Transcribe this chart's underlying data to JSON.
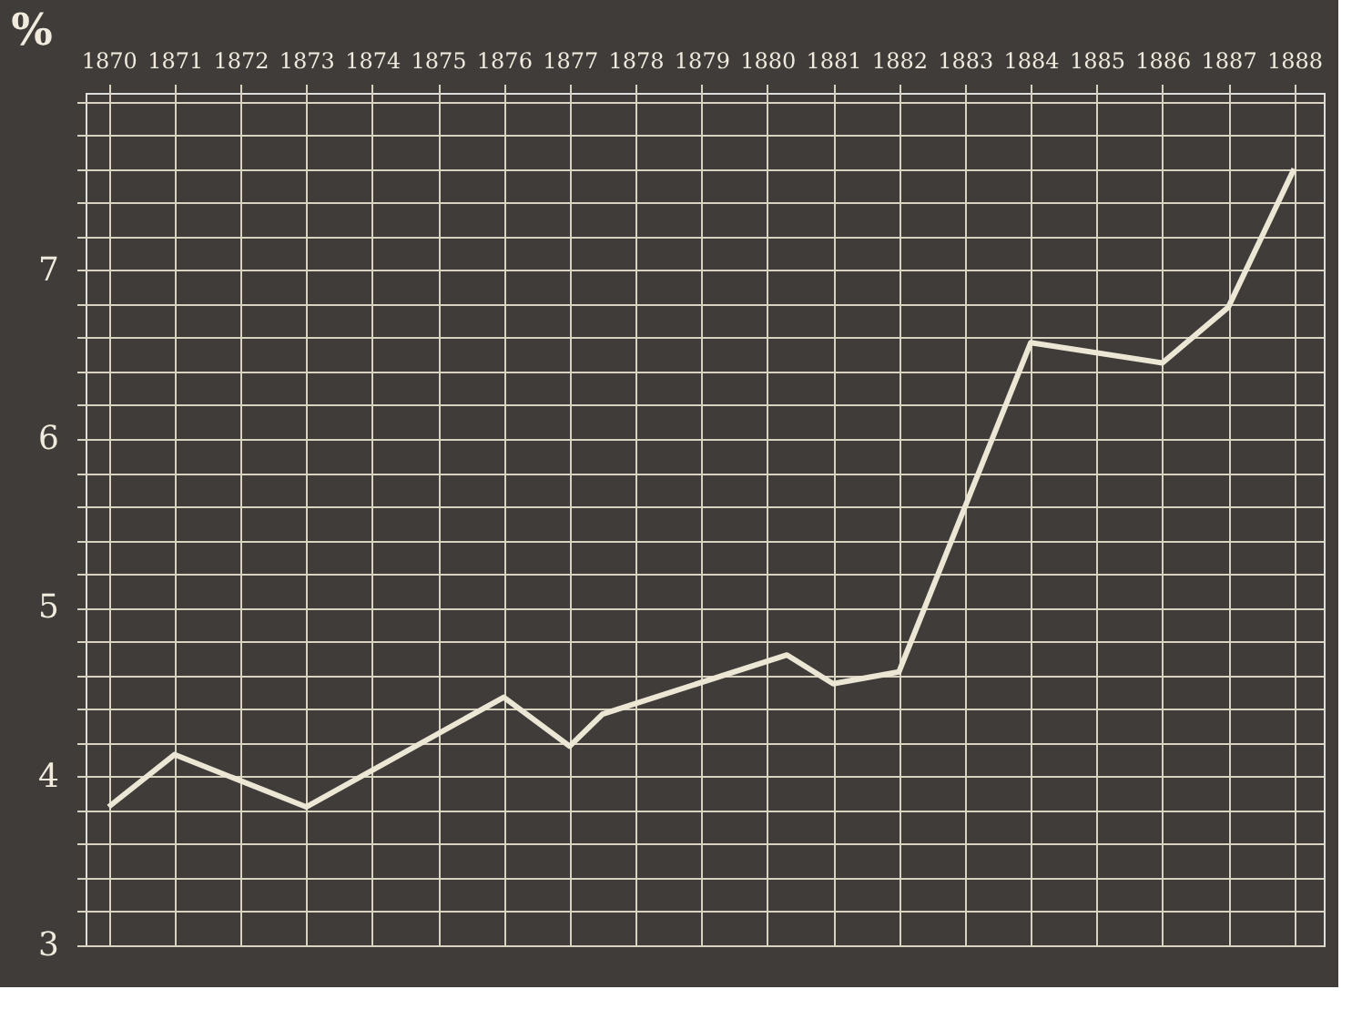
{
  "chart_data": {
    "type": "line",
    "ylabel": "%",
    "x": [
      1870,
      1871,
      1873,
      1876,
      1877,
      1877.5,
      1880.3,
      1881,
      1882,
      1884,
      1886,
      1887,
      1888
    ],
    "series": [
      {
        "color": "#ece6d4",
        "values": [
          3.82,
          4.13,
          3.82,
          4.47,
          4.18,
          4.37,
          4.72,
          4.55,
          4.62,
          6.57,
          6.45,
          6.78,
          7.6
        ]
      }
    ],
    "xlim": [
      1869.65,
      1888.45
    ],
    "ylim": [
      3,
      8.05
    ],
    "xticks": [
      1870,
      1871,
      1872,
      1873,
      1874,
      1875,
      1876,
      1877,
      1878,
      1879,
      1880,
      1881,
      1882,
      1883,
      1884,
      1885,
      1886,
      1887,
      1888
    ],
    "yticks": [
      3,
      {
        "value": 3.2,
        "label": null
      },
      {
        "value": 3.4,
        "label": null
      },
      {
        "value": 3.6,
        "label": null
      },
      {
        "value": 3.8,
        "label": null
      },
      4,
      {
        "value": 4.2,
        "label": null
      },
      {
        "value": 4.4,
        "label": null
      },
      {
        "value": 4.6,
        "label": null
      },
      {
        "value": 4.8,
        "label": null
      },
      5,
      {
        "value": 5.2,
        "label": null
      },
      {
        "value": 5.4,
        "label": null
      },
      {
        "value": 5.6,
        "label": null
      },
      {
        "value": 5.8,
        "label": null
      },
      6,
      {
        "value": 6.2,
        "label": null
      },
      {
        "value": 6.4,
        "label": null
      },
      {
        "value": 6.6,
        "label": null
      },
      {
        "value": 6.8,
        "label": null
      },
      7,
      {
        "value": 7.2,
        "label": null
      },
      {
        "value": 7.4,
        "label": null
      },
      {
        "value": 7.6,
        "label": null
      },
      {
        "value": 7.8,
        "label": null
      },
      {
        "value": 8.0,
        "label": null
      }
    ],
    "grid": true,
    "marker": "none",
    "line_style": "solid"
  }
}
